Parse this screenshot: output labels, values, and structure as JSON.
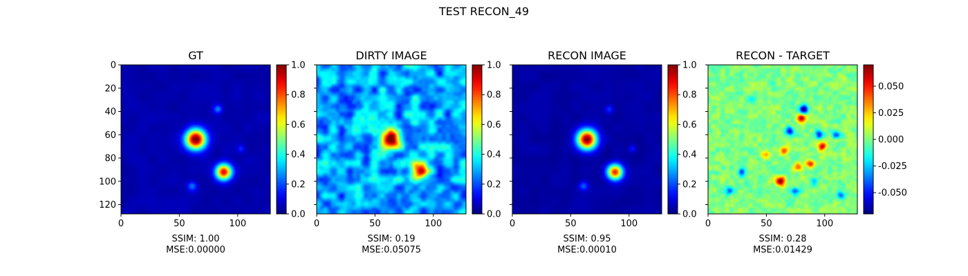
{
  "figure": {
    "suptitle": "TEST RECON_49"
  },
  "chart_data": [
    {
      "type": "heatmap",
      "title": "GT",
      "colormap": "jet",
      "x_ticks": [
        "0",
        "50",
        "100"
      ],
      "y_ticks": [
        "0",
        "20",
        "40",
        "60",
        "80",
        "100",
        "120"
      ],
      "image_extent": [
        0,
        128,
        128,
        0
      ],
      "colorbar": {
        "range": [
          0.0,
          1.0
        ],
        "ticks": [
          "0.0",
          "0.2",
          "0.4",
          "0.6",
          "0.8",
          "1.0"
        ]
      },
      "blobs": [
        {
          "x": 64,
          "y": 64,
          "sigma": 6.0,
          "amp": 1.0
        },
        {
          "x": 88,
          "y": 92,
          "sigma": 4.8,
          "amp": 0.85
        },
        {
          "x": 83,
          "y": 38,
          "sigma": 2.5,
          "amp": 0.2
        },
        {
          "x": 61,
          "y": 104,
          "sigma": 2.8,
          "amp": 0.2
        },
        {
          "x": 103,
          "y": 72,
          "sigma": 2.2,
          "amp": 0.12
        }
      ],
      "caption": {
        "ssim": "SSIM: 1.00",
        "mse": "MSE:0.00000"
      }
    },
    {
      "type": "heatmap",
      "title": "DIRTY IMAGE",
      "colormap": "jet",
      "x_ticks": [
        "0",
        "50",
        "100"
      ],
      "y_ticks": [],
      "image_extent": [
        0,
        128,
        128,
        0
      ],
      "colorbar": {
        "range": [
          0.0,
          1.0
        ],
        "ticks": [
          "0.0",
          "0.2",
          "0.4",
          "0.6",
          "0.8",
          "1.0"
        ]
      },
      "blobs": [
        {
          "x": 64,
          "y": 64,
          "sigma": 5.5,
          "amp": 0.72
        },
        {
          "x": 88,
          "y": 91,
          "sigma": 5.0,
          "amp": 0.6
        }
      ],
      "caption": {
        "ssim": "SSIM: 0.19",
        "mse": "MSE:0.05075"
      }
    },
    {
      "type": "heatmap",
      "title": "RECON IMAGE",
      "colormap": "jet",
      "x_ticks": [
        "0",
        "50",
        "100"
      ],
      "y_ticks": [],
      "image_extent": [
        0,
        128,
        128,
        0
      ],
      "colorbar": {
        "range": [
          0.0,
          1.0
        ],
        "ticks": [
          "0.0",
          "0.2",
          "0.4",
          "0.6",
          "0.8",
          "1.0"
        ]
      },
      "blobs": [
        {
          "x": 64,
          "y": 64,
          "sigma": 5.8,
          "amp": 0.98
        },
        {
          "x": 88,
          "y": 92,
          "sigma": 4.6,
          "amp": 0.82
        },
        {
          "x": 83,
          "y": 38,
          "sigma": 2.5,
          "amp": 0.15
        },
        {
          "x": 61,
          "y": 104,
          "sigma": 2.8,
          "amp": 0.18
        },
        {
          "x": 103,
          "y": 72,
          "sigma": 2.2,
          "amp": 0.12
        }
      ],
      "caption": {
        "ssim": "SSIM: 0.95",
        "mse": "MSE:0.00010"
      }
    },
    {
      "type": "heatmap",
      "title": "RECON - TARGET",
      "colormap": "jet",
      "x_ticks": [
        "0",
        "50",
        "100"
      ],
      "y_ticks": [],
      "image_extent": [
        0,
        128,
        128,
        0
      ],
      "colorbar": {
        "range": [
          -0.07,
          0.07
        ],
        "ticks": [
          "-0.050",
          "-0.025",
          "0.000",
          "0.025",
          "0.050"
        ],
        "tick_values": [
          -0.05,
          -0.025,
          0.0,
          0.025,
          0.05
        ]
      },
      "blobs": [
        {
          "x": 82,
          "y": 38,
          "sigma": 2.5,
          "amp": -0.07
        },
        {
          "x": 80,
          "y": 46,
          "sigma": 2.5,
          "amp": 0.06
        },
        {
          "x": 70,
          "y": 57,
          "sigma": 2.5,
          "amp": -0.06
        },
        {
          "x": 95,
          "y": 60,
          "sigma": 2.5,
          "amp": -0.05
        },
        {
          "x": 98,
          "y": 70,
          "sigma": 2.5,
          "amp": 0.06
        },
        {
          "x": 110,
          "y": 60,
          "sigma": 2.5,
          "amp": -0.04
        },
        {
          "x": 88,
          "y": 85,
          "sigma": 2.5,
          "amp": 0.055
        },
        {
          "x": 77,
          "y": 88,
          "sigma": 2.5,
          "amp": 0.04
        },
        {
          "x": 65,
          "y": 74,
          "sigma": 2.5,
          "amp": 0.04
        },
        {
          "x": 49,
          "y": 77,
          "sigma": 2.5,
          "amp": 0.035
        },
        {
          "x": 62,
          "y": 100,
          "sigma": 3.0,
          "amp": 0.07
        },
        {
          "x": 29,
          "y": 92,
          "sigma": 2.5,
          "amp": -0.04
        },
        {
          "x": 18,
          "y": 108,
          "sigma": 2.5,
          "amp": -0.035
        },
        {
          "x": 75,
          "y": 108,
          "sigma": 2.5,
          "amp": -0.035
        },
        {
          "x": 114,
          "y": 112,
          "sigma": 2.5,
          "amp": -0.035
        },
        {
          "x": 91,
          "y": 100,
          "sigma": 2.5,
          "amp": -0.03
        },
        {
          "x": 38,
          "y": 30,
          "sigma": 2.5,
          "amp": -0.02
        }
      ],
      "caption": {
        "ssim": "SSIM: 0.28",
        "mse": "MSE:0.01429"
      }
    }
  ]
}
